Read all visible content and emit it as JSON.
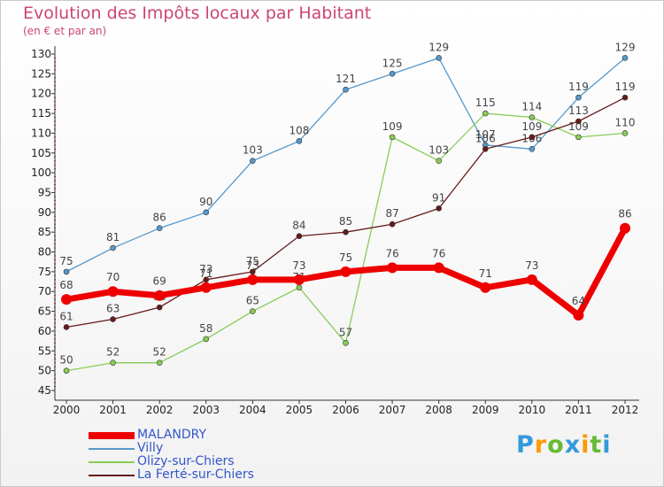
{
  "title": "Evolution des Impôts locaux par Habitant",
  "subtitle": "(en € et par an)",
  "logo": {
    "letters": [
      {
        "ch": "P",
        "color": "#3399dd"
      },
      {
        "ch": "r",
        "color": "#ff9900"
      },
      {
        "ch": "o",
        "color": "#66bb33"
      },
      {
        "ch": "x",
        "color": "#3399dd"
      },
      {
        "ch": "i",
        "color": "#ff9900"
      },
      {
        "ch": "t",
        "color": "#66bb33"
      },
      {
        "ch": "i",
        "color": "#3399dd"
      }
    ]
  },
  "chart_data": {
    "type": "line",
    "title": "Evolution des Impôts locaux par Habitant",
    "subtitle": "(en € et par an)",
    "x": [
      "2000",
      "2001",
      "2002",
      "2003",
      "2004",
      "2005",
      "2006",
      "2007",
      "2008",
      "2009",
      "2010",
      "2011",
      "2012"
    ],
    "ylim": [
      45,
      130
    ],
    "yticks": [
      45,
      50,
      55,
      60,
      65,
      70,
      75,
      80,
      85,
      90,
      95,
      100,
      105,
      110,
      115,
      120,
      125,
      130
    ],
    "grid": false,
    "legend_position": "bottom-left",
    "series": [
      {
        "name": "MALANDRY",
        "color": "#ee0000",
        "emphasis": true,
        "values": [
          68,
          70,
          69,
          71,
          73,
          73,
          75,
          76,
          76,
          71,
          73,
          64,
          86
        ]
      },
      {
        "name": "Villy",
        "color": "#5599cc",
        "emphasis": false,
        "values": [
          75,
          81,
          86,
          90,
          103,
          108,
          121,
          125,
          129,
          107,
          106,
          119,
          129
        ]
      },
      {
        "name": "Olizy-sur-Chiers",
        "color": "#88cc55",
        "emphasis": false,
        "values": [
          50,
          52,
          52,
          58,
          65,
          71,
          57,
          109,
          103,
          115,
          114,
          109,
          110
        ]
      },
      {
        "name": "La Ferté-sur-Chiers",
        "color": "#661a1a",
        "emphasis": false,
        "values": [
          61,
          63,
          66,
          73,
          75,
          84,
          85,
          87,
          91,
          106,
          109,
          113,
          119
        ]
      }
    ]
  }
}
